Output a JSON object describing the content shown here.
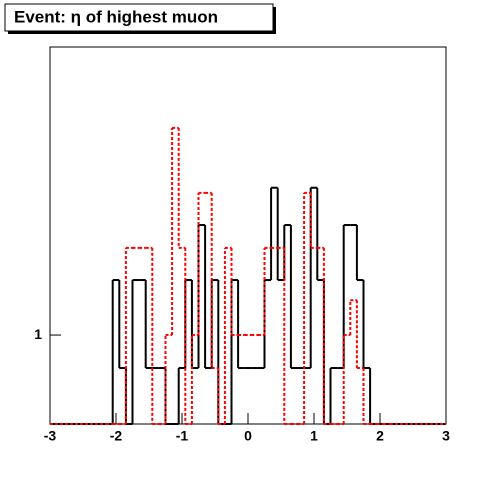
{
  "chart_data": {
    "type": "histogram",
    "title": "Event: η of highest muon",
    "bins": [
      -2.15,
      -2.05,
      -1.95,
      -1.85,
      -1.75,
      -1.65,
      -1.55,
      -1.45,
      -1.35,
      -1.25,
      -1.15,
      -1.05,
      -0.95,
      -0.85,
      -0.75,
      -0.65,
      -0.55,
      -0.45,
      -0.35,
      -0.25,
      -0.15,
      -0.05,
      0.05,
      0.15,
      0.25,
      0.35,
      0.45,
      0.55,
      0.65,
      0.75,
      0.85,
      0.95,
      1.05,
      1.15,
      1.25,
      1.35,
      1.45,
      1.55,
      1.65,
      1.75,
      1.85,
      1.95,
      2.05,
      2.15
    ],
    "series": [
      {
        "color": "#000000",
        "dashed": false,
        "values": [
          0,
          2,
          0.66,
          0,
          2,
          2,
          0.66,
          0.66,
          0.66,
          0,
          0,
          0.66,
          2,
          0.66,
          4,
          0.66,
          2,
          0,
          0,
          2,
          0.66,
          0.66,
          0.66,
          0.66,
          2,
          6.4,
          2,
          4,
          0.66,
          0.66,
          0.66,
          6.4,
          2,
          0,
          0.66,
          0.66,
          4,
          4,
          2,
          0.66,
          0,
          0,
          0
        ]
      },
      {
        "color": "#ff0000",
        "dashed": true,
        "values": [
          0,
          0,
          0,
          3,
          3,
          3,
          3,
          0,
          0,
          1,
          13.6,
          3,
          0,
          1,
          6,
          6,
          0.66,
          0,
          3,
          1,
          1,
          1,
          1,
          1,
          3,
          3,
          3,
          0,
          0,
          0,
          6,
          3,
          3,
          0,
          0,
          0,
          1,
          1.55,
          0.66,
          0,
          0,
          0,
          0
        ]
      }
    ],
    "xlim": [
      -3,
      3
    ],
    "xticks": [
      -3,
      -2,
      -1,
      0,
      1,
      2,
      3
    ],
    "ylim": [
      0.326,
      37.7
    ],
    "yticks": [
      1
    ],
    "log_y": true
  }
}
